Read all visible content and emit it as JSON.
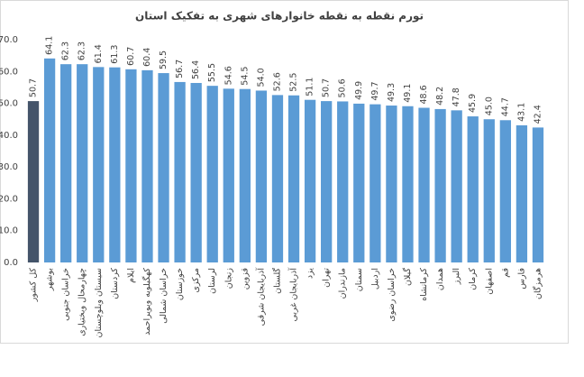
{
  "chart_data": {
    "type": "bar",
    "title": "تورم نقطه به نقطه خانوارهای شهری به تفکیک استان",
    "categories": [
      "کل کشور",
      "بوشهر",
      "خراسان جنوبی",
      "چهارمحال وبختیاری",
      "سیستان وبلوچستان",
      "کردستان",
      "ایلام",
      "کهگیلویه وبویراحمد",
      "خراسان شمالی",
      "خوزستان",
      "مرکزی",
      "لرستان",
      "زنجان",
      "قزوین",
      "آذربایجان شرقی",
      "گلستان",
      "آذربایجان غربی",
      "یزد",
      "تهران",
      "مازندران",
      "سمنان",
      "اردبیل",
      "خراسان رضوی",
      "گیلان",
      "کرمانشاه",
      "همدان",
      "البرز",
      "کرمان",
      "اصفهان",
      "قم",
      "فارس",
      "هرمزگان"
    ],
    "values": [
      50.7,
      64.1,
      62.3,
      62.3,
      61.4,
      61.3,
      60.7,
      60.4,
      59.5,
      56.7,
      56.4,
      55.5,
      54.6,
      54.5,
      54.0,
      52.6,
      52.5,
      51.1,
      50.7,
      50.6,
      49.9,
      49.7,
      49.3,
      49.1,
      48.6,
      48.2,
      47.8,
      45.9,
      45.0,
      44.7,
      43.1,
      42.4
    ],
    "value_labels": [
      "50.7",
      "64.1",
      "62.3",
      "62.3",
      "61.4",
      "61.3",
      "60.7",
      "60.4",
      "59.5",
      "56.7",
      "56.4",
      "55.5",
      "54.6",
      "54.5",
      "54.0",
      "52.6",
      "52.5",
      "51.1",
      "50.7",
      "50.6",
      "49.9",
      "49.7",
      "49.3",
      "49.1",
      "48.6",
      "48.2",
      "47.8",
      "45.9",
      "45.0",
      "44.7",
      "43.1",
      "42.4"
    ],
    "color": "#5b9bd5",
    "highlight_color": "#44546a",
    "highlight_index": 0,
    "ylim": [
      0,
      70
    ],
    "yticks": [
      {
        "value": 0,
        "label": "0.0"
      },
      {
        "value": 10,
        "label": "10.0"
      },
      {
        "value": 20,
        "label": "20.0"
      },
      {
        "value": 30,
        "label": "30.0"
      },
      {
        "value": 40,
        "label": "40.0"
      },
      {
        "value": 50,
        "label": "50.0"
      },
      {
        "value": 60,
        "label": "60.0"
      },
      {
        "value": 70,
        "label": "70.0"
      }
    ],
    "grid": false
  }
}
